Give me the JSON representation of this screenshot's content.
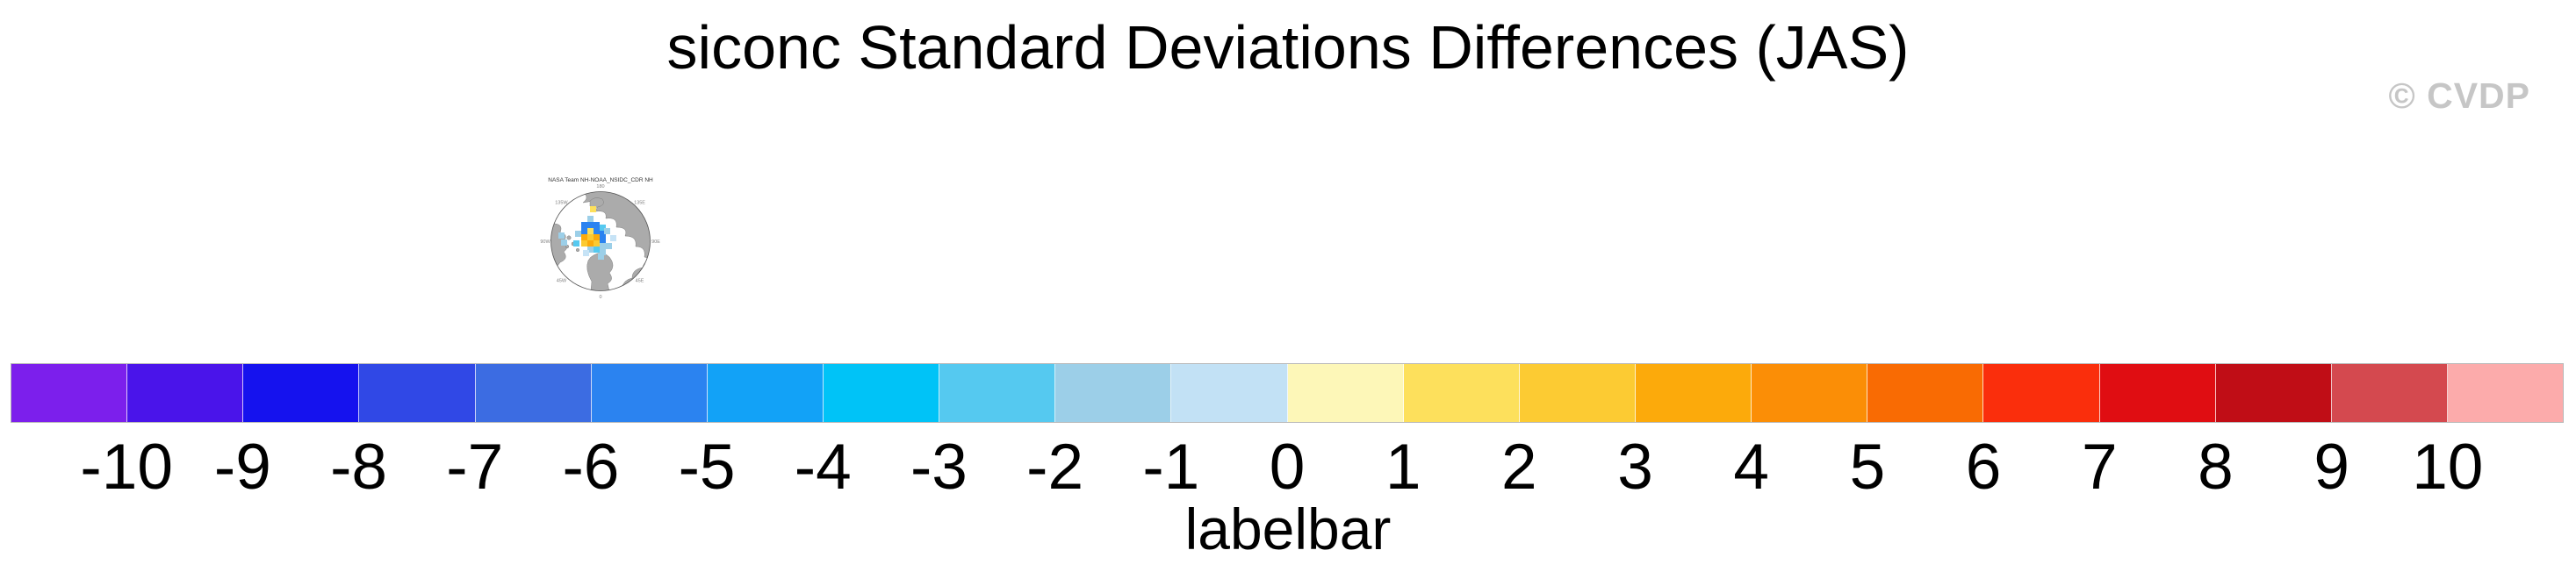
{
  "title": "siconc Standard Deviations Differences (JAS)",
  "watermark": "© CVDP",
  "map_thumbnail": {
    "title": "NASA Team NH-NOAA_NSIDC_CDR NH",
    "ring_labels": [
      "180",
      "135W",
      "90W",
      "45W",
      "0",
      "45E",
      "90E",
      "135E"
    ],
    "land_color": "#ababab",
    "ocean_color": "#ffffff",
    "palette": {
      "b": "#2b83f0",
      "c": "#55c9f0",
      "lb": "#9ccfe8",
      "p": "#c6e3f6",
      "y": "#fde05c",
      "dy": "#fcca32",
      "o": "#fcaa0b"
    },
    "cells": [
      [
        48,
        20,
        "y"
      ],
      [
        38,
        38,
        "b"
      ],
      [
        45,
        38,
        "b"
      ],
      [
        52,
        38,
        "b"
      ],
      [
        45,
        31,
        "lb"
      ],
      [
        59,
        41,
        "c"
      ],
      [
        59,
        48,
        "b"
      ],
      [
        38,
        45,
        "b"
      ],
      [
        45,
        45,
        "y"
      ],
      [
        52,
        45,
        "b"
      ],
      [
        38,
        52,
        "o"
      ],
      [
        45,
        52,
        "dy"
      ],
      [
        52,
        52,
        "o"
      ],
      [
        59,
        55,
        "b"
      ],
      [
        38,
        59,
        "dy"
      ],
      [
        45,
        59,
        "o"
      ],
      [
        52,
        59,
        "dy"
      ],
      [
        59,
        62,
        "lb"
      ],
      [
        31,
        48,
        "lb"
      ],
      [
        29,
        59,
        "c"
      ],
      [
        12,
        50,
        "lb"
      ],
      [
        15,
        58,
        "lb"
      ],
      [
        45,
        66,
        "lb"
      ],
      [
        52,
        66,
        "c"
      ],
      [
        59,
        69,
        "lb"
      ],
      [
        66,
        62,
        "lb"
      ],
      [
        71,
        53,
        "p"
      ],
      [
        64,
        45,
        "lb"
      ],
      [
        40,
        70,
        "p"
      ],
      [
        57,
        74,
        "lb"
      ]
    ]
  },
  "chart_data": {
    "type": "heatmap",
    "title": "siconc Standard Deviations Differences (JAS)",
    "subtitle": "NASA Team NH-NOAA_NSIDC_CDR NH",
    "colorbar_label": "labelbar",
    "legend_position": "bottom",
    "levels": [
      -10,
      -9,
      -8,
      -7,
      -6,
      -5,
      -4,
      -3,
      -2,
      -1,
      0,
      1,
      2,
      3,
      4,
      5,
      6,
      7,
      8,
      9,
      10
    ],
    "colors": [
      "#7c1fec",
      "#4a14ea",
      "#1512ee",
      "#3048e6",
      "#3c6ce2",
      "#2b83f0",
      "#12a2f7",
      "#00c3f7",
      "#55c9f0",
      "#9ccfe8",
      "#c2e1f5",
      "#fdf7b8",
      "#fde05c",
      "#fccb33",
      "#fcaa0b",
      "#fb8e06",
      "#f96b03",
      "#fa2e0c",
      "#e00d12",
      "#c00d16",
      "#d4494f",
      "#fcabab"
    ],
    "colorbar_border_color": "#b8b8b8"
  }
}
